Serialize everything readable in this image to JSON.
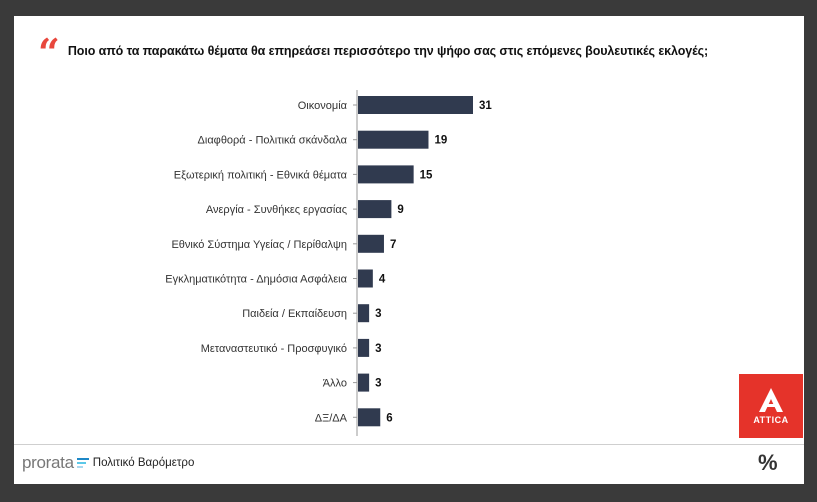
{
  "title": "Ποιο από τα παρακάτω θέματα θα επηρεάσει περισσότερο την ψήφο σας στις επόμενες βουλευτικές εκλογές;",
  "footer": {
    "brand": "prorata",
    "text": "Πολιτικό Βαρόμετρο",
    "percent_symbol": "%",
    "brand_mark_colors": [
      "#1e88c7",
      "#5bc8e8",
      "#aad8ef"
    ]
  },
  "logo": {
    "label": "ATTICA",
    "color": "#e5332a"
  },
  "colors": {
    "bar": "#303a4f",
    "accent": "#e8473c"
  },
  "chart_data": {
    "type": "bar",
    "orientation": "horizontal",
    "categories": [
      "Οικονομία",
      "Διαφθορά - Πολιτικά σκάνδαλα",
      "Εξωτερική πολιτική - Εθνικά θέματα",
      "Ανεργία - Συνθήκες εργασίας",
      "Εθνικό Σύστημα Υγείας / Περίθαλψη",
      "Εγκληματικότητα - Δημόσια Ασφάλεια",
      "Παιδεία / Εκπαίδευση",
      "Μεταναστευτικό - Προσφυγικό",
      "Άλλο",
      "ΔΞ/ΔΑ"
    ],
    "values": [
      31,
      19,
      15,
      9,
      7,
      4,
      3,
      3,
      3,
      6
    ],
    "xlim": [
      0,
      31
    ],
    "grid": false
  }
}
